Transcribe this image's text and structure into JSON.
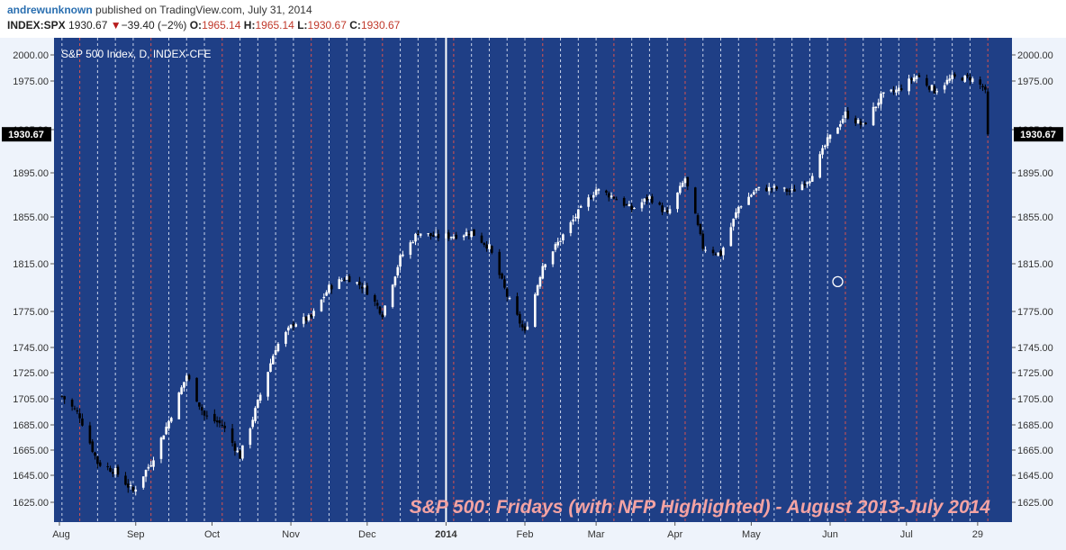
{
  "header": {
    "author": "andrewunknown",
    "published": "published on TradingView.com, July 31, 2014",
    "symbol": "INDEX:SPX",
    "last": "1930.67",
    "change": "−39.40 (−2%)",
    "o_label": "O:",
    "o_value": "1965.14",
    "h_label": "H:",
    "h_value": "1965.14",
    "l_label": "L:",
    "l_value": "1930.67",
    "c_label": "C:",
    "c_value": "1930.67"
  },
  "colors": {
    "background": "#1f3f86",
    "friday_line": "#c9d3ea",
    "nfp_line": "#d9534f",
    "up_candle": "#ffffff",
    "down_candle": "#000000",
    "annotation": "#f4a3a3"
  },
  "chart_data": {
    "type": "candlestick",
    "title": "S&P 500 Index, D, INDEX-CFE",
    "annotation": "S&P 500: Fridays (with NFP Highlighted) - August 2013-July 2014",
    "ylim": [
      1610,
      2010
    ],
    "y_ticks": [
      "2000.00",
      "1975.00",
      "1935.00",
      "1895.00",
      "1855.00",
      "1815.00",
      "1775.00",
      "1745.00",
      "1725.00",
      "1705.00",
      "1685.00",
      "1665.00",
      "1645.00",
      "1625.00"
    ],
    "last_price_label": "1930.67",
    "x_labels": [
      {
        "label": "Aug",
        "day": 0
      },
      {
        "label": "Sep",
        "day": 30
      },
      {
        "label": "Oct",
        "day": 60
      },
      {
        "label": "Nov",
        "day": 91
      },
      {
        "label": "Dec",
        "day": 121
      },
      {
        "label": "2014",
        "day": 152
      },
      {
        "label": "Feb",
        "day": 183
      },
      {
        "label": "Mar",
        "day": 211
      },
      {
        "label": "Apr",
        "day": 242
      },
      {
        "label": "May",
        "day": 272
      },
      {
        "label": "Jun",
        "day": 303
      },
      {
        "label": "Jul",
        "day": 333
      },
      {
        "label": "29",
        "day": 361
      }
    ],
    "x_range_days": [
      0,
      366
    ],
    "fridays_days": [
      1,
      8,
      15,
      22,
      29,
      36,
      43,
      50,
      57,
      64,
      71,
      78,
      85,
      92,
      99,
      106,
      113,
      120,
      127,
      134,
      141,
      148,
      155,
      162,
      169,
      176,
      183,
      190,
      197,
      204,
      211,
      218,
      225,
      232,
      239,
      246,
      253,
      260,
      267,
      274,
      281,
      288,
      295,
      302,
      309,
      316,
      323,
      330,
      337,
      344,
      351,
      358
    ],
    "nfp_days": [
      8,
      36,
      64,
      99,
      127,
      155,
      190,
      218,
      246,
      274,
      309,
      337,
      365
    ],
    "year_divider_day": 152,
    "closes": [
      {
        "day": 1,
        "close": 1707
      },
      {
        "day": 8,
        "close": 1692
      },
      {
        "day": 15,
        "close": 1655
      },
      {
        "day": 22,
        "close": 1648
      },
      {
        "day": 29,
        "close": 1633
      },
      {
        "day": 36,
        "close": 1655
      },
      {
        "day": 43,
        "close": 1688
      },
      {
        "day": 50,
        "close": 1723
      },
      {
        "day": 57,
        "close": 1692
      },
      {
        "day": 64,
        "close": 1685
      },
      {
        "day": 71,
        "close": 1660
      },
      {
        "day": 78,
        "close": 1702
      },
      {
        "day": 85,
        "close": 1745
      },
      {
        "day": 92,
        "close": 1765
      },
      {
        "day": 99,
        "close": 1770
      },
      {
        "day": 106,
        "close": 1795
      },
      {
        "day": 113,
        "close": 1804
      },
      {
        "day": 120,
        "close": 1795
      },
      {
        "day": 127,
        "close": 1773
      },
      {
        "day": 134,
        "close": 1820
      },
      {
        "day": 141,
        "close": 1842
      },
      {
        "day": 148,
        "close": 1838
      },
      {
        "day": 155,
        "close": 1839
      },
      {
        "day": 162,
        "close": 1842
      },
      {
        "day": 169,
        "close": 1829
      },
      {
        "day": 176,
        "close": 1788
      },
      {
        "day": 183,
        "close": 1757
      },
      {
        "day": 190,
        "close": 1814
      },
      {
        "day": 197,
        "close": 1836
      },
      {
        "day": 204,
        "close": 1859
      },
      {
        "day": 211,
        "close": 1880
      },
      {
        "day": 218,
        "close": 1873
      },
      {
        "day": 225,
        "close": 1862
      },
      {
        "day": 232,
        "close": 1873
      },
      {
        "day": 239,
        "close": 1857
      },
      {
        "day": 246,
        "close": 1890
      },
      {
        "day": 253,
        "close": 1829
      },
      {
        "day": 260,
        "close": 1823
      },
      {
        "day": 267,
        "close": 1864
      },
      {
        "day": 274,
        "close": 1880
      },
      {
        "day": 281,
        "close": 1881
      },
      {
        "day": 288,
        "close": 1878
      },
      {
        "day": 295,
        "close": 1890
      },
      {
        "day": 302,
        "close": 1925
      },
      {
        "day": 309,
        "close": 1948
      },
      {
        "day": 316,
        "close": 1938
      },
      {
        "day": 323,
        "close": 1962
      },
      {
        "day": 330,
        "close": 1968
      },
      {
        "day": 337,
        "close": 1980
      },
      {
        "day": 344,
        "close": 1967
      },
      {
        "day": 351,
        "close": 1978
      },
      {
        "day": 358,
        "close": 1978
      },
      {
        "day": 363,
        "close": 1970
      },
      {
        "day": 364,
        "close": 1965
      },
      {
        "day": 365,
        "close": 1931
      }
    ],
    "marker_circle": {
      "day": 306,
      "value": 1800
    }
  }
}
